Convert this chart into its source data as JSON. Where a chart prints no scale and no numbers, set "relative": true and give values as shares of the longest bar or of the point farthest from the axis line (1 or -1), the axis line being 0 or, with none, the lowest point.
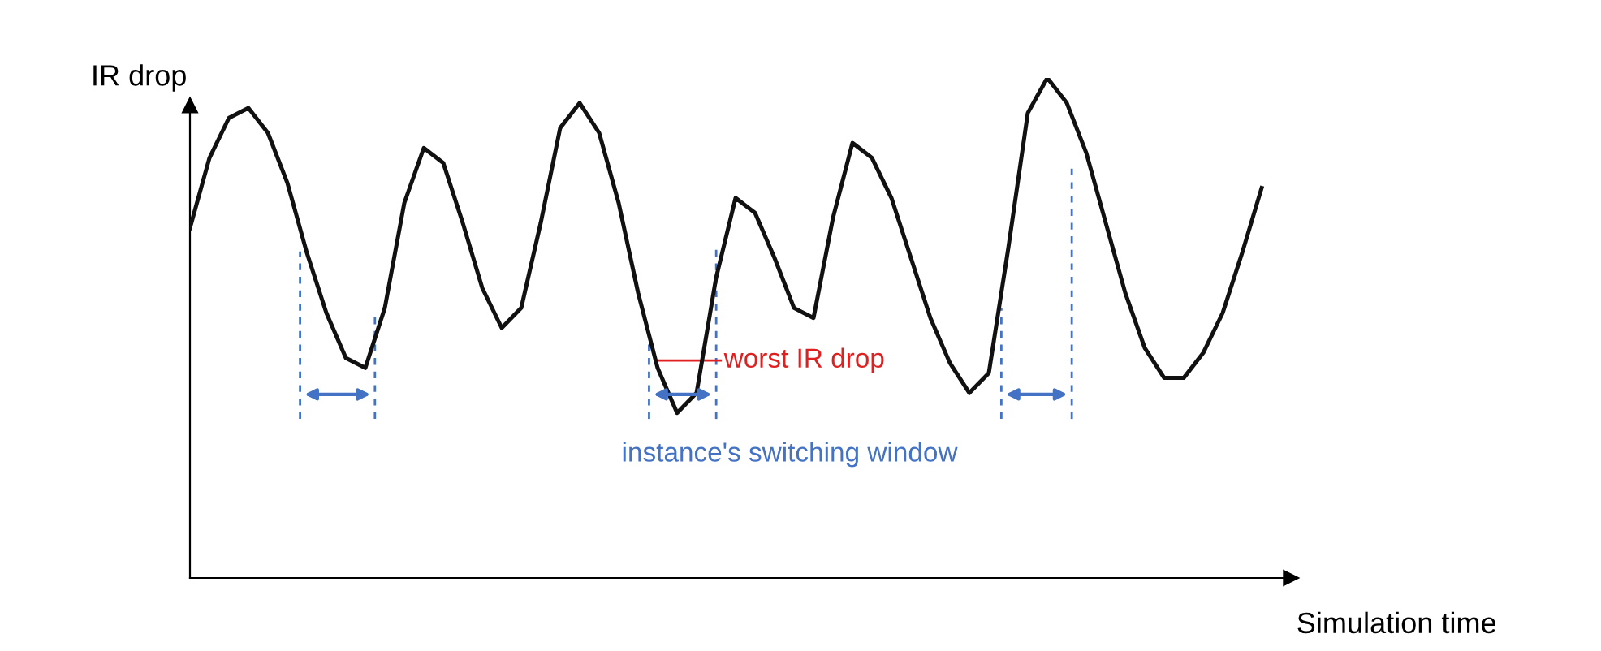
{
  "chart_data": {
    "type": "line",
    "relative": true,
    "xlabel": "Simulation time",
    "ylabel": "IR drop",
    "categories": [
      null,
      null,
      null,
      null,
      null,
      null,
      null,
      null,
      null,
      null,
      null,
      null,
      null,
      null,
      null,
      null,
      null,
      null,
      null,
      null,
      null,
      null,
      null,
      null,
      null,
      null,
      null,
      null,
      null,
      null,
      null,
      null,
      null,
      null,
      null,
      null,
      null,
      null,
      null,
      null,
      null,
      null,
      null,
      null,
      null,
      null,
      null,
      null,
      null,
      null,
      null,
      null,
      null,
      null,
      null,
      null
    ],
    "series": [
      {
        "color": "#111111",
        "values": [
          0.7,
          0.84,
          0.92,
          0.94,
          0.89,
          0.79,
          0.65,
          0.53,
          0.44,
          0.42,
          0.54,
          0.75,
          0.86,
          0.83,
          0.71,
          0.58,
          0.5,
          0.54,
          0.71,
          0.9,
          0.95,
          0.89,
          0.75,
          0.57,
          0.42,
          0.33,
          0.37,
          0.6,
          0.76,
          0.73,
          0.64,
          0.54,
          0.52,
          0.72,
          0.87,
          0.84,
          0.76,
          0.64,
          0.52,
          0.43,
          0.37,
          0.41,
          0.66,
          0.93,
          1.0,
          0.95,
          0.85,
          0.71,
          0.57,
          0.46,
          0.4,
          0.4,
          0.45,
          0.53,
          0.65,
          0.78
        ]
      }
    ],
    "annotations": [
      "worst IR drop",
      "instance's switching window"
    ],
    "legend": false,
    "marker": "none",
    "line_style": "solid"
  }
}
